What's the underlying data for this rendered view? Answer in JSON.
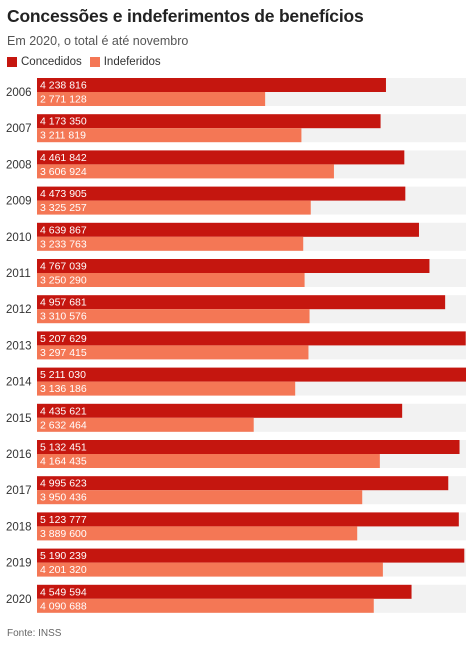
{
  "title": "Concessões e indeferimentos de benefícios",
  "subtitle": "Em 2020, o total é até novembro",
  "source": "Fonte: INSS",
  "colors": {
    "concedidos": "#c5160f",
    "indeferidos": "#f47755",
    "track": "#f2f2f2",
    "year_text": "#333333",
    "label_text": "#ffffff"
  },
  "chart_data": {
    "type": "bar",
    "orientation": "horizontal",
    "title": "Concessões e indeferimentos de benefícios",
    "subtitle": "Em 2020, o total é até novembro",
    "legend": "top-left",
    "xlim": [
      0,
      5211030
    ],
    "categories": [
      "2006",
      "2007",
      "2008",
      "2009",
      "2010",
      "2011",
      "2012",
      "2013",
      "2014",
      "2015",
      "2016",
      "2017",
      "2018",
      "2019",
      "2020"
    ],
    "series": [
      {
        "name": "Concedidos",
        "values": [
          4238816,
          4173350,
          4461842,
          4473905,
          4639867,
          4767039,
          4957681,
          5207629,
          5211030,
          4435621,
          5132451,
          4995623,
          5123777,
          5190239,
          4549594
        ],
        "labels": [
          "4 238 816",
          "4 173 350",
          "4 461 842",
          "4 473 905",
          "4 639 867",
          "4 767 039",
          "4 957 681",
          "5 207 629",
          "5 211 030",
          "4 435 621",
          "5 132 451",
          "4 995 623",
          "5 123 777",
          "5 190 239",
          "4 549 594"
        ]
      },
      {
        "name": "Indeferidos",
        "values": [
          2771128,
          3211819,
          3606924,
          3325257,
          3233763,
          3250290,
          3310576,
          3297415,
          3136186,
          2632464,
          4164435,
          3950436,
          3889600,
          4201320,
          4090688
        ],
        "labels": [
          "2 771 128",
          "3 211 819",
          "3 606 924",
          "3 325 257",
          "3 233 763",
          "3 250 290",
          "3 310 576",
          "3 297 415",
          "3 136 186",
          "2 632 464",
          "4 164 435",
          "3 950 436",
          "3 889 600",
          "4 201 320",
          "4 090 688"
        ]
      }
    ]
  }
}
